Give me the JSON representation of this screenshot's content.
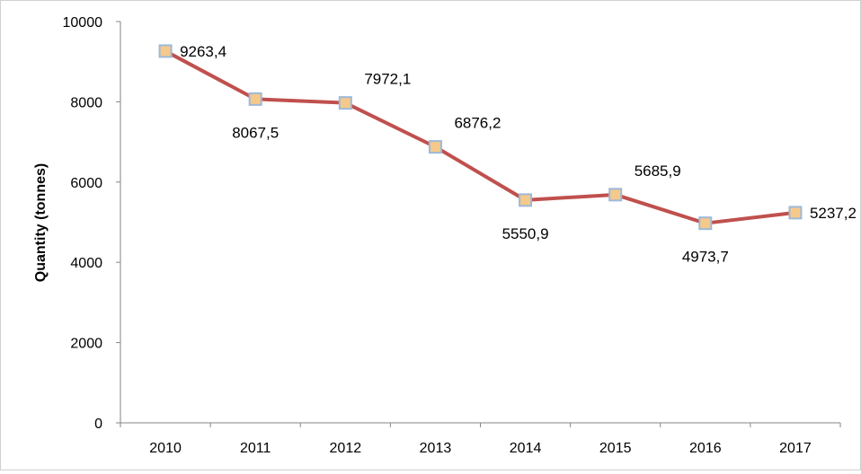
{
  "chart_data": {
    "type": "line",
    "title": "",
    "xlabel": "",
    "ylabel": "Quantity (tonnes)",
    "x": [
      "2010",
      "2011",
      "2012",
      "2013",
      "2014",
      "2015",
      "2016",
      "2017"
    ],
    "ylim": [
      0,
      10000
    ],
    "yticks": [
      0,
      2000,
      4000,
      6000,
      8000,
      10000
    ],
    "grid": false,
    "legend": "none",
    "series": [
      {
        "values": [
          9263.4,
          8067.5,
          7972.1,
          6876.2,
          5550.9,
          5685.9,
          4973.7,
          5237.2
        ],
        "data_labels": [
          "9263,4",
          "8067,5",
          "7972,1",
          "6876,2",
          "5550,9",
          "5685,9",
          "4973,7",
          "5237,2"
        ],
        "label_positions": [
          "right",
          "below",
          "above-right",
          "above-right",
          "below",
          "above-right",
          "below",
          "right"
        ],
        "line_color": "#c0504d",
        "marker_fill": "#f5c98a",
        "marker_border": "#9db9d9"
      }
    ]
  }
}
